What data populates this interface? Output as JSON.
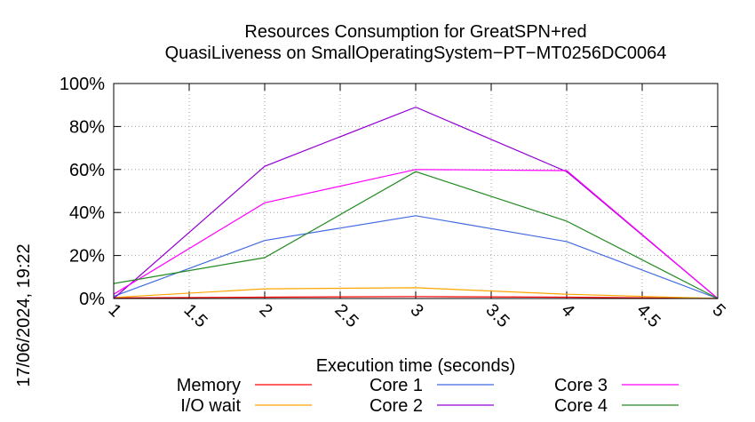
{
  "timestamp": "17/06/2024, 19:22",
  "chart_data": {
    "type": "line",
    "title": "Resources Consumption for GreatSPN+red",
    "subtitle": "QuasiLiveness on SmallOperatingSystem−PT−MT0256DC0064",
    "xlabel": "Execution time (seconds)",
    "ylabel": "",
    "xlim": [
      1,
      5
    ],
    "ylim": [
      0,
      100
    ],
    "x_ticks": [
      {
        "value": 1,
        "label": "1"
      },
      {
        "value": 1.5,
        "label": "1.5"
      },
      {
        "value": 2,
        "label": "2"
      },
      {
        "value": 2.5,
        "label": "2.5"
      },
      {
        "value": 3,
        "label": "3"
      },
      {
        "value": 3.5,
        "label": "3.5"
      },
      {
        "value": 4,
        "label": "4"
      },
      {
        "value": 4.5,
        "label": "4.5"
      },
      {
        "value": 5,
        "label": "5"
      }
    ],
    "y_ticks": [
      {
        "value": 0,
        "label": "0%"
      },
      {
        "value": 20,
        "label": "20%"
      },
      {
        "value": 40,
        "label": "40%"
      },
      {
        "value": 60,
        "label": "60%"
      },
      {
        "value": 80,
        "label": "80%"
      },
      {
        "value": 100,
        "label": "100%"
      }
    ],
    "grid": true,
    "legend_position": "bottom",
    "series": [
      {
        "name": "Memory",
        "color": "#ff0000",
        "x": [
          1,
          2,
          3,
          4,
          5
        ],
        "y": [
          0.3,
          0.6,
          0.9,
          0.6,
          0
        ]
      },
      {
        "name": "I/O wait",
        "color": "#ffa500",
        "x": [
          1,
          2,
          3,
          4,
          5
        ],
        "y": [
          0.5,
          4.5,
          5,
          2,
          0
        ]
      },
      {
        "name": "Core 1",
        "color": "#4169e1",
        "x": [
          1,
          2,
          3,
          4,
          5
        ],
        "y": [
          1,
          27,
          38.5,
          26.5,
          0
        ]
      },
      {
        "name": "Core 2",
        "color": "#9400d3",
        "x": [
          1,
          2,
          3,
          4,
          5
        ],
        "y": [
          0,
          61.5,
          89,
          59,
          0
        ]
      },
      {
        "name": "Core 3",
        "color": "#ff00ff",
        "x": [
          1,
          2,
          3,
          4,
          5
        ],
        "y": [
          2,
          44.5,
          60,
          59.5,
          0
        ]
      },
      {
        "name": "Core 4",
        "color": "#228b22",
        "x": [
          1,
          2,
          3,
          4,
          5
        ],
        "y": [
          7,
          19,
          59,
          36,
          0
        ]
      }
    ]
  }
}
